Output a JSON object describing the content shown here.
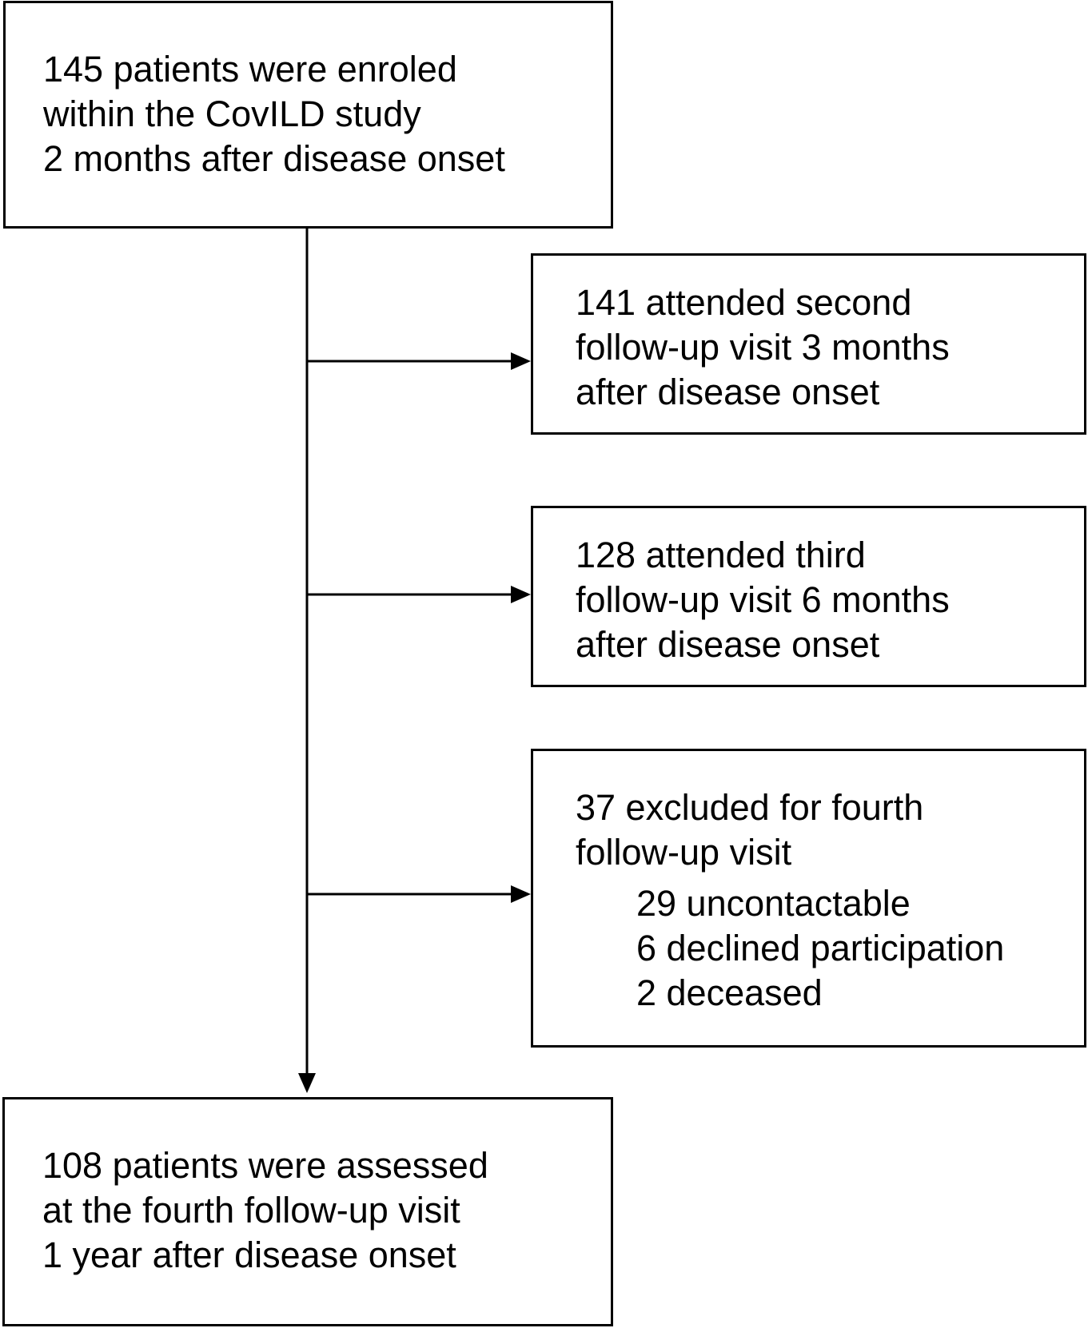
{
  "boxes": {
    "enrolment": {
      "lines": [
        "145 patients were enroled",
        "within the CovILD study",
        "2 months after disease onset"
      ]
    },
    "second_visit": {
      "lines": [
        "141 attended second",
        "follow-up visit 3 months",
        "after disease onset"
      ]
    },
    "third_visit": {
      "lines": [
        "128 attended third",
        "follow-up visit 6 months",
        "after disease onset"
      ]
    },
    "exclusions": {
      "lines": [
        "37 excluded for fourth",
        "follow-up visit"
      ],
      "reasons": [
        "29 uncontactable",
        "6 declined participation",
        "2 deceased"
      ]
    },
    "final_assessment": {
      "lines": [
        "108 patients were assessed",
        "at the fourth follow-up visit",
        "1 year after disease onset"
      ]
    }
  },
  "colors": {
    "stroke": "#000000",
    "background": "#ffffff"
  }
}
